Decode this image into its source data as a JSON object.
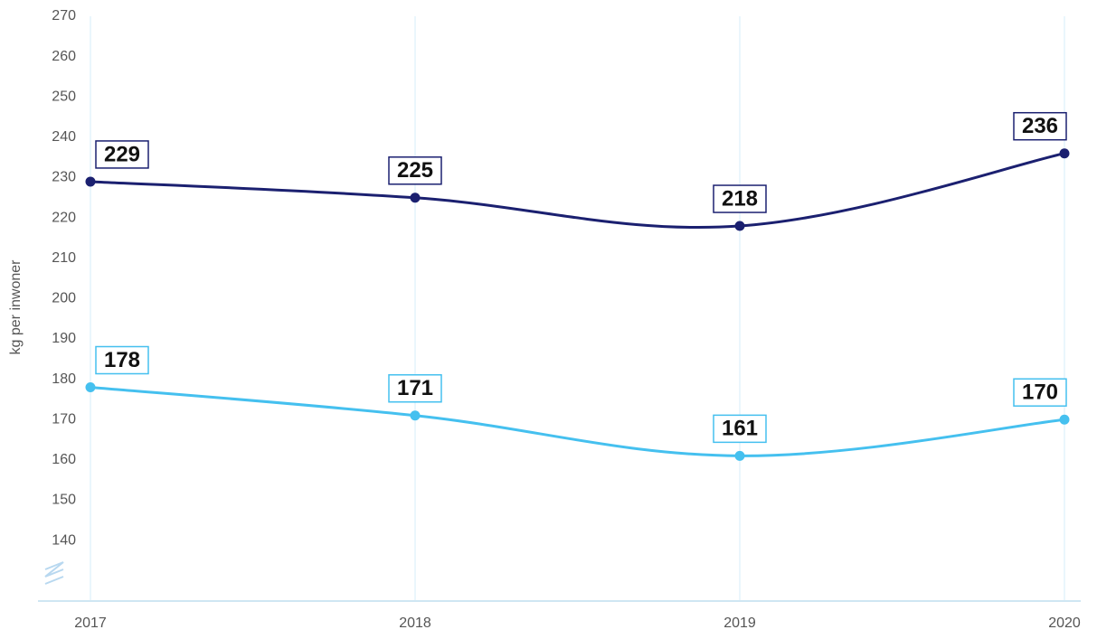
{
  "chart_data": {
    "type": "line",
    "y_label": "kg per inwoner",
    "categories": [
      "2017",
      "2018",
      "2019",
      "2020"
    ],
    "series": [
      {
        "color": "#1b2070",
        "values": [
          229,
          225,
          218,
          236
        ]
      },
      {
        "color": "#45c0ef",
        "values": [
          178,
          171,
          161,
          170
        ]
      }
    ],
    "ylim": [
      125,
      270
    ],
    "yticks": [
      140,
      150,
      160,
      170,
      180,
      190,
      200,
      210,
      220,
      230,
      240,
      250,
      260,
      270
    ],
    "grid": "x"
  }
}
